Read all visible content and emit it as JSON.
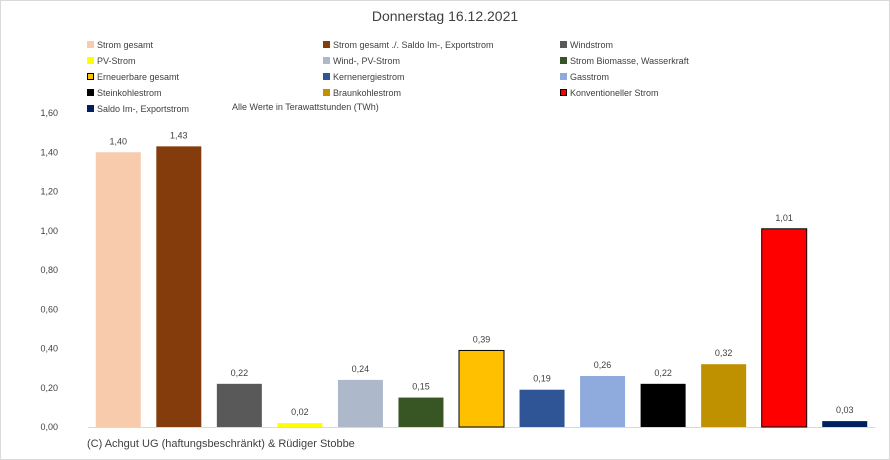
{
  "chart_data": {
    "type": "bar",
    "title": "Donnerstag 16.12.2021",
    "note": "Alle Werte in Terawattstunden (TWh)",
    "copyright": "(C) Achgut UG (haftungsbeschränkt) & Rüdiger Stobbe",
    "ylim": [
      0,
      1.6
    ],
    "yticks": [
      "0,00",
      "0,20",
      "0,40",
      "0,60",
      "0,80",
      "1,00",
      "1,20",
      "1,40",
      "1,60"
    ],
    "grid": false,
    "legend_position": "top",
    "series": [
      {
        "name": "Strom gesamt",
        "value": 1.4,
        "label": "1,40",
        "color": "#f8cbad"
      },
      {
        "name": "Strom gesamt ./. Saldo Im-, Exportstrom",
        "value": 1.43,
        "label": "1,43",
        "color": "#843c0c"
      },
      {
        "name": "Windstrom",
        "value": 0.22,
        "label": "0,22",
        "color": "#595959"
      },
      {
        "name": "PV-Strom",
        "value": 0.02,
        "label": "0,02",
        "color": "#ffff00"
      },
      {
        "name": "Wind-, PV-Strom",
        "value": 0.24,
        "label": "0,24",
        "color": "#adb9ca"
      },
      {
        "name": "Strom Biomasse, Wasserkraft",
        "value": 0.15,
        "label": "0,15",
        "color": "#375623"
      },
      {
        "name": "Erneuerbare gesamt",
        "value": 0.39,
        "label": "0,39",
        "color": "#ffc000",
        "outline": "#000000"
      },
      {
        "name": "Kernenergiestrom",
        "value": 0.19,
        "label": "0,19",
        "color": "#2f5597"
      },
      {
        "name": "Gasstrom",
        "value": 0.26,
        "label": "0,26",
        "color": "#8faadc"
      },
      {
        "name": "Steinkohlestrom",
        "value": 0.22,
        "label": "0,22",
        "color": "#000000"
      },
      {
        "name": "Braunkohlestrom",
        "value": 0.32,
        "label": "0,32",
        "color": "#bf9000"
      },
      {
        "name": "Konventioneller Strom",
        "value": 1.01,
        "label": "1,01",
        "color": "#ff0000",
        "outline": "#000000"
      },
      {
        "name": "Saldo Im-, Exportstrom",
        "value": 0.03,
        "label": "0,03",
        "color": "#002060"
      }
    ]
  }
}
